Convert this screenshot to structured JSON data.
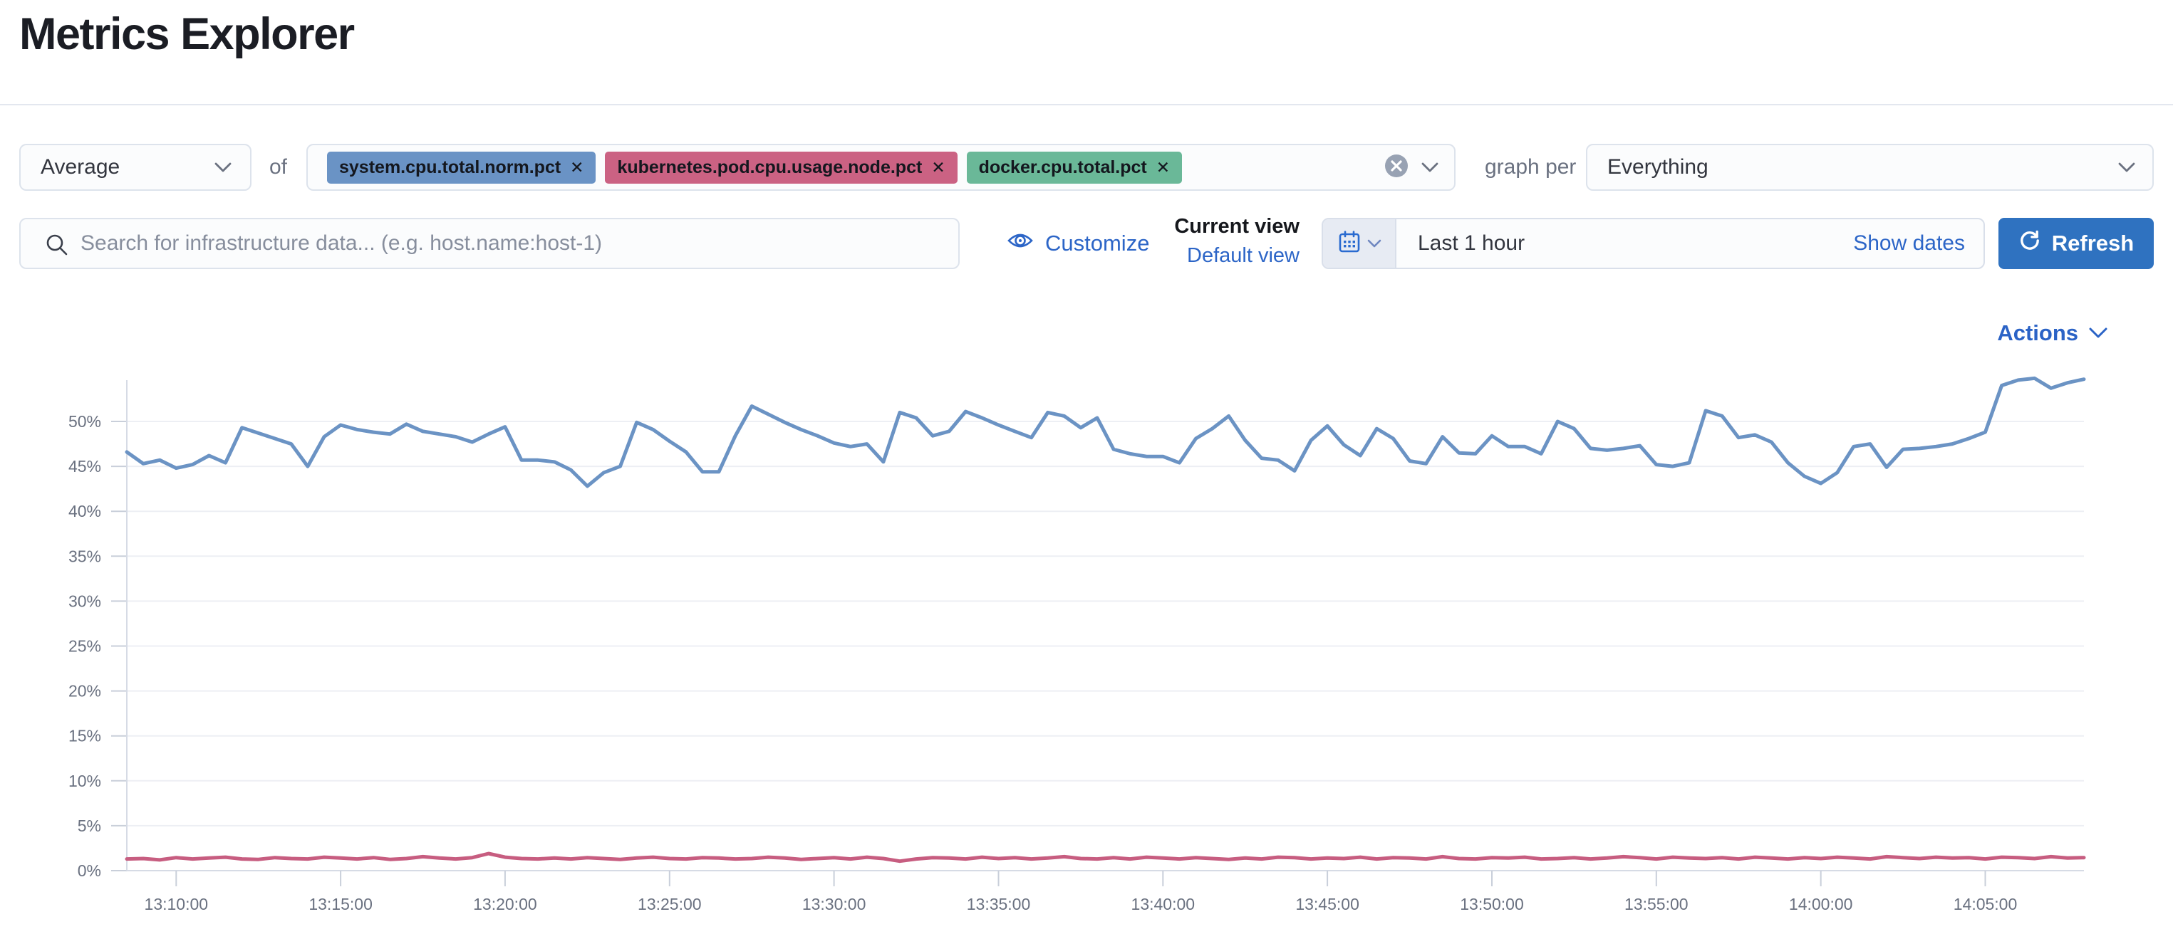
{
  "page": {
    "title": "Metrics Explorer"
  },
  "toolbar": {
    "aggregation": {
      "value": "Average"
    },
    "of_label": "of",
    "metrics": [
      {
        "label": "system.cpu.total.norm.pct",
        "color": "#6a93c5"
      },
      {
        "label": "kubernetes.pod.cpu.usage.node.pct",
        "color": "#cb6283"
      },
      {
        "label": "docker.cpu.total.pct",
        "color": "#6ab898"
      }
    ],
    "graph_per_label": "graph per",
    "group_by": {
      "value": "Everything"
    }
  },
  "searchbar": {
    "placeholder": "Search for infrastructure data... (e.g. host.name:host-1)"
  },
  "view_controls": {
    "customize_label": "Customize",
    "current_view_label": "Current view",
    "default_view_label": "Default view"
  },
  "datepicker": {
    "value": "Last 1 hour",
    "show_dates_label": "Show dates",
    "refresh_label": "Refresh"
  },
  "actions": {
    "label": "Actions"
  },
  "icons": {
    "remove_metric": "✕"
  },
  "colors": {
    "link_blue": "#2c65c7",
    "primary_button": "#2f72c0",
    "title_text": "#1b1d24",
    "muted_label": "#6a7180",
    "line_blue": "#6b93c4",
    "line_pink": "#c75d80",
    "quick_select_bg": "#e7ebf3"
  },
  "chart_data": {
    "type": "line",
    "title": "",
    "xlabel": "",
    "ylabel": "",
    "x_start": "13:08:30",
    "x_interval_seconds": 30,
    "x_ticks": [
      "13:10:00",
      "13:15:00",
      "13:20:00",
      "13:25:00",
      "13:30:00",
      "13:35:00",
      "13:40:00",
      "13:45:00",
      "13:50:00",
      "13:55:00",
      "14:00:00",
      "14:05:00"
    ],
    "tick_start_index": 3,
    "tick_step": 10,
    "y_ticks": [
      {
        "label": "50%",
        "value": 50
      },
      {
        "label": "45%",
        "value": 45
      },
      {
        "label": "40%",
        "value": 40
      },
      {
        "label": "35%",
        "value": 35
      },
      {
        "label": "30%",
        "value": 30
      },
      {
        "label": "25%",
        "value": 25
      },
      {
        "label": "20%",
        "value": 20
      },
      {
        "label": "15%",
        "value": 15
      },
      {
        "label": "10%",
        "value": 10
      },
      {
        "label": "5%",
        "value": 5
      },
      {
        "label": "0%",
        "value": 0
      }
    ],
    "ylim": [
      0,
      55
    ],
    "grid": "horizontal",
    "legend": "none",
    "series": [
      {
        "name": "system.cpu.total.norm.pct",
        "color": "#6b93c4",
        "values": [
          46.6,
          45.3,
          45.7,
          44.8,
          45.2,
          46.2,
          45.4,
          49.3,
          48.7,
          48.1,
          47.5,
          45.0,
          48.3,
          49.6,
          49.1,
          48.8,
          48.6,
          49.7,
          48.9,
          48.6,
          48.3,
          47.7,
          48.6,
          49.4,
          45.7,
          45.7,
          45.5,
          44.6,
          42.8,
          44.3,
          45.0,
          49.9,
          49.1,
          47.8,
          46.6,
          44.4,
          44.4,
          48.4,
          51.7,
          50.8,
          49.9,
          49.1,
          48.4,
          47.6,
          47.2,
          47.5,
          45.5,
          51.0,
          50.4,
          48.4,
          48.9,
          51.1,
          50.4,
          49.6,
          48.9,
          48.2,
          51.0,
          50.6,
          49.3,
          50.4,
          46.9,
          46.4,
          46.1,
          46.1,
          45.4,
          48.1,
          49.2,
          50.6,
          47.9,
          45.9,
          45.7,
          44.5,
          47.9,
          49.5,
          47.4,
          46.2,
          49.2,
          48.1,
          45.6,
          45.3,
          48.3,
          46.5,
          46.4,
          48.4,
          47.2,
          47.2,
          46.4,
          50.0,
          49.2,
          47.0,
          46.8,
          47.0,
          47.3,
          45.2,
          45.0,
          45.4,
          51.2,
          50.6,
          48.2,
          48.5,
          47.7,
          45.4,
          43.9,
          43.1,
          44.3,
          47.2,
          47.5,
          44.9,
          46.9,
          47.0,
          47.2,
          47.5,
          48.1,
          48.8,
          54.0,
          54.6,
          54.8,
          53.7,
          54.3,
          54.7
        ]
      },
      {
        "name": "kubernetes.pod.cpu.usage.node.pct",
        "color": "#c75d80",
        "values": [
          1.3,
          1.35,
          1.2,
          1.45,
          1.3,
          1.4,
          1.5,
          1.3,
          1.25,
          1.45,
          1.35,
          1.3,
          1.5,
          1.4,
          1.3,
          1.45,
          1.25,
          1.35,
          1.55,
          1.4,
          1.3,
          1.45,
          1.9,
          1.5,
          1.35,
          1.3,
          1.4,
          1.3,
          1.45,
          1.35,
          1.25,
          1.4,
          1.5,
          1.35,
          1.3,
          1.45,
          1.4,
          1.3,
          1.35,
          1.5,
          1.4,
          1.25,
          1.35,
          1.45,
          1.3,
          1.5,
          1.35,
          1.05,
          1.3,
          1.45,
          1.4,
          1.3,
          1.5,
          1.35,
          1.45,
          1.3,
          1.4,
          1.55,
          1.35,
          1.3,
          1.45,
          1.3,
          1.5,
          1.4,
          1.3,
          1.45,
          1.35,
          1.25,
          1.4,
          1.3,
          1.5,
          1.45,
          1.3,
          1.4,
          1.35,
          1.5,
          1.3,
          1.45,
          1.4,
          1.3,
          1.55,
          1.35,
          1.3,
          1.45,
          1.4,
          1.5,
          1.3,
          1.35,
          1.45,
          1.3,
          1.4,
          1.55,
          1.45,
          1.3,
          1.5,
          1.4,
          1.35,
          1.45,
          1.3,
          1.5,
          1.4,
          1.3,
          1.45,
          1.35,
          1.5,
          1.4,
          1.3,
          1.55,
          1.45,
          1.35,
          1.5,
          1.4,
          1.45,
          1.3,
          1.5,
          1.45,
          1.35,
          1.55,
          1.4,
          1.45
        ]
      }
    ]
  }
}
